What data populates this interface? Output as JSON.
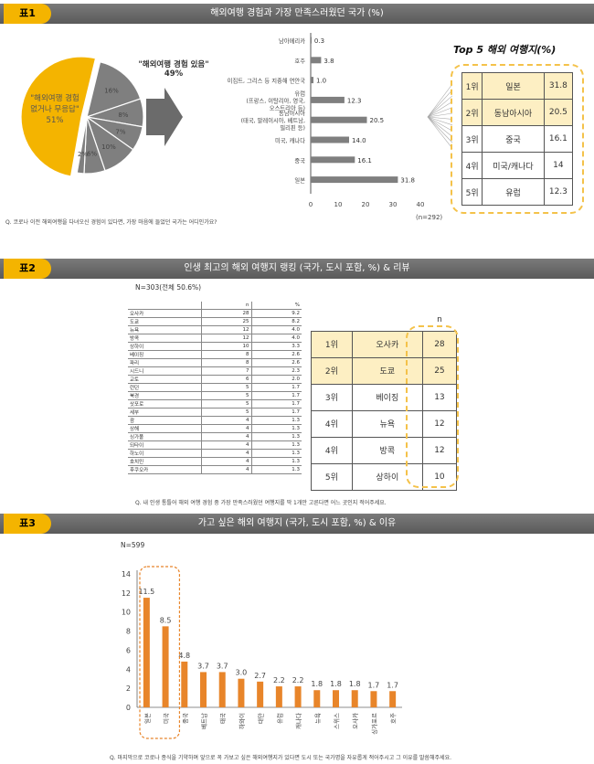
{
  "panel1": {
    "tag": "표1",
    "title": "해외여행 경험과 가장 만족스러웠던 국가 (%)",
    "pie": {
      "label_yes": "\"해외여행 경험 있음\"",
      "pct_yes": "49%",
      "label_no": "\"해외여행 경험 없거나 무응답\"",
      "pct_no": "51%",
      "slices": [
        {
          "value": 51,
          "label": "51%",
          "color": "#f4b400"
        },
        {
          "value": 16,
          "label": "16%",
          "color": "#7f7f7f"
        },
        {
          "value": 8,
          "label": "8%",
          "color": "#7f7f7f"
        },
        {
          "value": 7,
          "label": "7%",
          "color": "#7f7f7f"
        },
        {
          "value": 10,
          "label": "10%",
          "color": "#7f7f7f"
        },
        {
          "value": 6,
          "label": "6%",
          "color": "#7f7f7f"
        },
        {
          "value": 2,
          "label": "2%",
          "color": "#7f7f7f"
        }
      ]
    },
    "question": "Q. 코로나 이전 해외여행을 다녀오신 경험이 있다면, 가장 마음에 들었던 국가는 어디인가요?",
    "n_note": "(n=292)",
    "top5_title": "Top 5 해외 여행지(%)",
    "top5": [
      {
        "rank": "1위",
        "name": "일본",
        "value": "31.8"
      },
      {
        "rank": "2위",
        "name": "동남아시아",
        "value": "20.5"
      },
      {
        "rank": "3위",
        "name": "중국",
        "value": "16.1"
      },
      {
        "rank": "4위",
        "name": "미국/캐나다",
        "value": "14"
      },
      {
        "rank": "5위",
        "name": "유럽",
        "value": "12.3"
      }
    ]
  },
  "panel2": {
    "tag": "표2",
    "title": "인생 최고의 해외 여행지 랭킹 (국가, 도시 포함, %) & 리뷰",
    "n_label": "N=303(전체 50.6%)",
    "col_n": "n",
    "col_pct": "%",
    "rows": [
      [
        "오사카",
        "28",
        "9.2"
      ],
      [
        "도쿄",
        "25",
        "8.2"
      ],
      [
        "뉴욕",
        "12",
        "4.0"
      ],
      [
        "방콕",
        "12",
        "4.0"
      ],
      [
        "상하이",
        "10",
        "3.3"
      ],
      [
        "베이징",
        "8",
        "2.6"
      ],
      [
        "파리",
        "8",
        "2.6"
      ],
      [
        "시드니",
        "7",
        "2.3"
      ],
      [
        "교토",
        "6",
        "2.0"
      ],
      [
        "런던",
        "5",
        "1.7"
      ],
      [
        "북경",
        "5",
        "1.7"
      ],
      [
        "삿포로",
        "5",
        "1.7"
      ],
      [
        "세부",
        "5",
        "1.7"
      ],
      [
        "괌",
        "4",
        "1.3"
      ],
      [
        "상해",
        "4",
        "1.3"
      ],
      [
        "싱가폴",
        "4",
        "1.3"
      ],
      [
        "되타이",
        "4",
        "1.3"
      ],
      [
        "하노이",
        "4",
        "1.3"
      ],
      [
        "호치민",
        "4",
        "1.3"
      ],
      [
        "후쿠오카",
        "4",
        "1.3"
      ]
    ],
    "rank_header_n": "n",
    "ranking": [
      {
        "rank": "1위",
        "name": "오사카",
        "n": "28"
      },
      {
        "rank": "2위",
        "name": "도쿄",
        "n": "25"
      },
      {
        "rank": "3위",
        "name": "베이징",
        "n": "13"
      },
      {
        "rank": "4위",
        "name": "뉴욕",
        "n": "12"
      },
      {
        "rank": "4위",
        "name": "방콕",
        "n": "12"
      },
      {
        "rank": "5위",
        "name": "상하이",
        "n": "10"
      }
    ],
    "question": "Q. 내 인생 통틀어 해외 여행 경험 중 가장 만족스러웠던 여행지를 딱 1개만 고른다면 어느 곳인지 적어주세요."
  },
  "panel3": {
    "tag": "표3",
    "title": "가고 싶은 해외 여행지 (국가, 도시 포함, %) & 이유",
    "n_label": "N=599",
    "question": "Q. 마지막으로 코로나 종식을 기약하며 앞으로 꼭 가보고 싶은 해외여행지가 있다면 도시 또는 국가명을 자유롭게 적어주시고 그 이유를 말씀해주세요."
  },
  "chart_data": [
    {
      "type": "pie",
      "title": "",
      "labels": [
        "\"해외여행 경험 없거나 무응답\"",
        "",
        "",
        "",
        "",
        "",
        ""
      ],
      "values": [
        51,
        16,
        8,
        7,
        10,
        6,
        2
      ]
    },
    {
      "type": "bar",
      "orientation": "horizontal",
      "categories": [
        "남아메리카",
        "호주",
        "이집트, 그리스 등 지중해 연안국",
        "유럽(프랑스, 이탈리아, 영국, 오스트리아 등)",
        "동남아시아(태국, 말레이시아, 베트남, 필리핀 등)",
        "미국, 캐나다",
        "중국",
        "일본"
      ],
      "values": [
        0.3,
        3.8,
        1.0,
        12.3,
        20.5,
        14.0,
        16.1,
        31.8
      ],
      "value_labels": [
        "0.3",
        "3.8",
        "1.0",
        "12.3",
        "20.5",
        "14.0",
        "16.1",
        "31.8"
      ],
      "xlim": [
        0,
        40
      ],
      "xticks": [
        "0",
        "10",
        "20",
        "30",
        "40"
      ]
    },
    {
      "type": "bar",
      "categories": [
        "일본",
        "미국",
        "중국",
        "베트남",
        "태국",
        "하와이",
        "대만",
        "유럽",
        "캐나다",
        "뉴욕",
        "스위스",
        "오사카",
        "싱가포르",
        "호주"
      ],
      "values": [
        11.5,
        8.5,
        4.8,
        3.7,
        3.7,
        3.0,
        2.7,
        2.2,
        2.2,
        1.8,
        1.8,
        1.8,
        1.7,
        1.7
      ],
      "value_labels": [
        "11.5",
        "8.5",
        "4.8",
        "3.7",
        "3.7",
        "3.0",
        "2.7",
        "2.2",
        "2.2",
        "1.8",
        "1.8",
        "1.8",
        "1.7",
        "1.7"
      ],
      "ylim": [
        0,
        14
      ],
      "yticks": [
        "0",
        "2",
        "4",
        "6",
        "8",
        "10",
        "12",
        "14"
      ],
      "color": "#e8852a"
    }
  ]
}
